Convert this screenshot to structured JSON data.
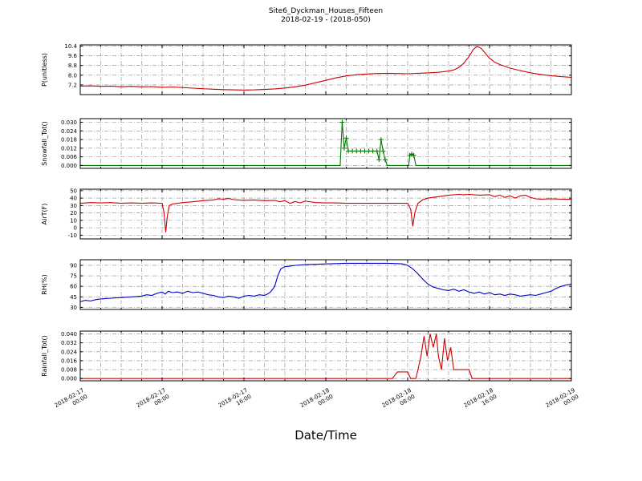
{
  "title": {
    "line1": "Site6_Dyckman_Houses_Fifteen",
    "line2": "2018-02-19 - (2018-050)"
  },
  "xlabel": "Date/Time",
  "chart_data": {
    "type": "line",
    "x_unit": "hours since 2018-02-17 00:00",
    "xlim": [
      0,
      48
    ],
    "grid": true,
    "minor_grid_step_hours": 2,
    "xticks": {
      "values": [
        0,
        8,
        16,
        24,
        32,
        40,
        48
      ],
      "labels": [
        [
          "2018-02-17",
          "00:00"
        ],
        [
          "2018-02-17",
          "08:00"
        ],
        [
          "2018-02-17",
          "16:00"
        ],
        [
          "2018-02-18",
          "00:00"
        ],
        [
          "2018-02-18",
          "08:00"
        ],
        [
          "2018-02-18",
          "16:00"
        ],
        [
          "2018-02-19",
          "00:00"
        ]
      ]
    },
    "panels": [
      {
        "name": "P",
        "ylabel": "P(unitless)",
        "color": "#cc0000",
        "ylim": [
          6.4,
          10.5
        ],
        "ytick_values": [
          7.2,
          8.0,
          8.8,
          9.6,
          10.4
        ],
        "ytick_labels": [
          "7.2",
          "8.0",
          "8.8",
          "9.6",
          "10.4"
        ],
        "marker": null,
        "points": [
          [
            0,
            7.1
          ],
          [
            1,
            7.12
          ],
          [
            2,
            7.08
          ],
          [
            3,
            7.1
          ],
          [
            4,
            7.05
          ],
          [
            5,
            7.08
          ],
          [
            6,
            7.04
          ],
          [
            7,
            7.06
          ],
          [
            8,
            7.0
          ],
          [
            9,
            7.03
          ],
          [
            10,
            6.98
          ],
          [
            11,
            6.93
          ],
          [
            12,
            6.88
          ],
          [
            13,
            6.84
          ],
          [
            14,
            6.81
          ],
          [
            15,
            6.79
          ],
          [
            16,
            6.78
          ],
          [
            17,
            6.79
          ],
          [
            18,
            6.82
          ],
          [
            19,
            6.87
          ],
          [
            20,
            6.94
          ],
          [
            21,
            7.04
          ],
          [
            22,
            7.18
          ],
          [
            23,
            7.38
          ],
          [
            24,
            7.58
          ],
          [
            25,
            7.78
          ],
          [
            26,
            7.94
          ],
          [
            27,
            8.04
          ],
          [
            28,
            8.1
          ],
          [
            29,
            8.14
          ],
          [
            30,
            8.16
          ],
          [
            31,
            8.14
          ],
          [
            32,
            8.12
          ],
          [
            33,
            8.16
          ],
          [
            34,
            8.19
          ],
          [
            35,
            8.24
          ],
          [
            36,
            8.34
          ],
          [
            36.5,
            8.44
          ],
          [
            37,
            8.64
          ],
          [
            37.5,
            9.0
          ],
          [
            38,
            9.55
          ],
          [
            38.4,
            10.1
          ],
          [
            38.8,
            10.38
          ],
          [
            39.2,
            10.2
          ],
          [
            39.6,
            9.8
          ],
          [
            40,
            9.4
          ],
          [
            40.5,
            9.08
          ],
          [
            41,
            8.88
          ],
          [
            42,
            8.58
          ],
          [
            43,
            8.38
          ],
          [
            44,
            8.2
          ],
          [
            45,
            8.06
          ],
          [
            46,
            7.96
          ],
          [
            47,
            7.88
          ],
          [
            48,
            7.82
          ]
        ]
      },
      {
        "name": "Snowfall",
        "ylabel": "Snowfall_Tot()",
        "color": "#007700",
        "ylim": [
          -0.002,
          0.0325
        ],
        "ytick_values": [
          0.0,
          0.006,
          0.012,
          0.018,
          0.024,
          0.03
        ],
        "ytick_labels": [
          "0.000",
          "0.006",
          "0.012",
          "0.018",
          "0.024",
          "0.030"
        ],
        "marker": "plus",
        "points": [
          [
            0,
            0
          ],
          [
            25.4,
            0
          ],
          [
            25.6,
            0.03
          ],
          [
            25.8,
            0.012
          ],
          [
            26,
            0.019
          ],
          [
            26.2,
            0.01
          ],
          [
            26.6,
            0.01
          ],
          [
            27,
            0.01
          ],
          [
            27.4,
            0.01
          ],
          [
            27.8,
            0.01
          ],
          [
            28.2,
            0.01
          ],
          [
            28.6,
            0.01
          ],
          [
            29,
            0.01
          ],
          [
            29.2,
            0.004
          ],
          [
            29.4,
            0.018
          ],
          [
            29.6,
            0.01
          ],
          [
            29.8,
            0.004
          ],
          [
            30,
            0
          ],
          [
            32.1,
            0
          ],
          [
            32.2,
            0.007
          ],
          [
            32.4,
            0.008
          ],
          [
            32.6,
            0.007
          ],
          [
            32.8,
            0
          ],
          [
            48,
            0
          ]
        ]
      },
      {
        "name": "AirT",
        "ylabel": "AirT(F)",
        "color": "#cc0000",
        "ylim": [
          -15,
          52
        ],
        "ytick_values": [
          -10,
          0,
          10,
          20,
          30,
          40,
          50
        ],
        "ytick_labels": [
          "-10",
          "0",
          "10",
          "20",
          "30",
          "40",
          "50"
        ],
        "marker": null,
        "points": [
          [
            0,
            33
          ],
          [
            1,
            34
          ],
          [
            2,
            33.5
          ],
          [
            3,
            34
          ],
          [
            4,
            33
          ],
          [
            5,
            33.5
          ],
          [
            6,
            33
          ],
          [
            7,
            33.5
          ],
          [
            8,
            33
          ],
          [
            8.2,
            20
          ],
          [
            8.35,
            -6
          ],
          [
            8.5,
            15
          ],
          [
            8.7,
            30
          ],
          [
            9,
            32
          ],
          [
            10,
            34
          ],
          [
            11,
            35
          ],
          [
            12,
            36.5
          ],
          [
            13,
            37.5
          ],
          [
            13.5,
            39
          ],
          [
            14,
            38.5
          ],
          [
            14.5,
            39.5
          ],
          [
            15,
            38
          ],
          [
            16,
            37
          ],
          [
            17,
            37.5
          ],
          [
            18,
            36.5
          ],
          [
            19,
            37
          ],
          [
            19.5,
            35
          ],
          [
            20,
            36.5
          ],
          [
            20.5,
            33
          ],
          [
            21,
            35.5
          ],
          [
            21.5,
            33.5
          ],
          [
            22,
            36
          ],
          [
            23,
            34
          ],
          [
            24,
            33.5
          ],
          [
            25,
            33.5
          ],
          [
            26,
            33
          ],
          [
            27,
            33
          ],
          [
            28,
            33
          ],
          [
            29,
            33
          ],
          [
            30,
            33
          ],
          [
            31,
            33
          ],
          [
            32,
            33
          ],
          [
            32.3,
            25
          ],
          [
            32.5,
            2
          ],
          [
            32.7,
            20
          ],
          [
            33,
            33
          ],
          [
            33.5,
            38
          ],
          [
            34,
            40
          ],
          [
            35,
            42
          ],
          [
            36,
            44
          ],
          [
            37,
            45
          ],
          [
            37.5,
            44.5
          ],
          [
            38,
            45
          ],
          [
            39,
            44
          ],
          [
            40,
            44.5
          ],
          [
            40.5,
            42
          ],
          [
            41,
            44
          ],
          [
            41.5,
            41
          ],
          [
            42,
            43
          ],
          [
            42.5,
            40
          ],
          [
            43,
            43
          ],
          [
            43.5,
            44
          ],
          [
            44,
            41
          ],
          [
            44.5,
            39
          ],
          [
            45,
            38.5
          ],
          [
            46,
            39
          ],
          [
            47,
            38.5
          ],
          [
            48,
            38.5
          ]
        ]
      },
      {
        "name": "RH",
        "ylabel": "RH(%)",
        "color": "#0000cc",
        "ylim": [
          27,
          98
        ],
        "ytick_values": [
          30,
          45,
          60,
          75,
          90
        ],
        "ytick_labels": [
          "30",
          "45",
          "60",
          "75",
          "90"
        ],
        "marker": null,
        "points": [
          [
            0,
            38
          ],
          [
            0.5,
            40
          ],
          [
            1,
            39
          ],
          [
            1.5,
            41
          ],
          [
            2,
            42
          ],
          [
            3,
            43
          ],
          [
            4,
            44
          ],
          [
            5,
            45
          ],
          [
            6,
            46
          ],
          [
            6.5,
            48
          ],
          [
            7,
            47
          ],
          [
            7.5,
            50
          ],
          [
            8,
            52
          ],
          [
            8.3,
            49
          ],
          [
            8.6,
            53
          ],
          [
            9,
            51
          ],
          [
            9.5,
            52
          ],
          [
            10,
            50
          ],
          [
            10.5,
            53
          ],
          [
            11,
            51
          ],
          [
            11.5,
            52
          ],
          [
            12,
            50
          ],
          [
            12.5,
            48
          ],
          [
            13,
            47
          ],
          [
            13.5,
            45
          ],
          [
            14,
            44
          ],
          [
            14.5,
            46
          ],
          [
            15,
            45
          ],
          [
            15.5,
            43
          ],
          [
            16,
            46
          ],
          [
            16.5,
            47
          ],
          [
            17,
            46
          ],
          [
            17.5,
            48
          ],
          [
            18,
            47
          ],
          [
            18.3,
            49
          ],
          [
            18.6,
            52
          ],
          [
            19,
            60
          ],
          [
            19.3,
            75
          ],
          [
            19.6,
            85
          ],
          [
            20,
            88
          ],
          [
            20.5,
            89
          ],
          [
            21,
            90
          ],
          [
            22,
            91
          ],
          [
            23,
            91.5
          ],
          [
            24,
            92
          ],
          [
            25,
            92.5
          ],
          [
            26,
            93
          ],
          [
            27,
            93
          ],
          [
            28,
            93
          ],
          [
            29,
            93
          ],
          [
            30,
            93
          ],
          [
            31,
            92.5
          ],
          [
            31.5,
            92
          ],
          [
            32,
            90
          ],
          [
            32.5,
            85
          ],
          [
            33,
            78
          ],
          [
            33.5,
            70
          ],
          [
            34,
            63
          ],
          [
            34.5,
            59
          ],
          [
            35,
            57
          ],
          [
            35.5,
            55
          ],
          [
            36,
            54
          ],
          [
            36.5,
            56
          ],
          [
            37,
            53
          ],
          [
            37.5,
            55
          ],
          [
            38,
            52
          ],
          [
            38.5,
            50
          ],
          [
            39,
            52
          ],
          [
            39.5,
            49
          ],
          [
            40,
            51
          ],
          [
            40.5,
            48
          ],
          [
            41,
            49
          ],
          [
            41.5,
            47
          ],
          [
            42,
            49
          ],
          [
            42.5,
            48
          ],
          [
            43,
            46
          ],
          [
            43.5,
            47
          ],
          [
            44,
            48
          ],
          [
            44.5,
            47
          ],
          [
            45,
            49
          ],
          [
            45.5,
            51
          ],
          [
            46,
            53
          ],
          [
            46.5,
            57
          ],
          [
            47,
            60
          ],
          [
            47.5,
            62
          ],
          [
            48,
            63
          ]
        ]
      },
      {
        "name": "Rainfall",
        "ylabel": "Rainfall_Tot()",
        "color": "#cc0000",
        "ylim": [
          -0.002,
          0.0425
        ],
        "ytick_values": [
          0.0,
          0.008,
          0.016,
          0.024,
          0.032,
          0.04
        ],
        "ytick_labels": [
          "0.000",
          "0.008",
          "0.016",
          "0.024",
          "0.032",
          "0.040"
        ],
        "marker": null,
        "points": [
          [
            0,
            0
          ],
          [
            30.5,
            0
          ],
          [
            31,
            0.006
          ],
          [
            31.5,
            0.006
          ],
          [
            32,
            0.006
          ],
          [
            32.3,
            0
          ],
          [
            32.8,
            0
          ],
          [
            33,
            0.008
          ],
          [
            33.3,
            0.02
          ],
          [
            33.6,
            0.038
          ],
          [
            33.9,
            0.02
          ],
          [
            34.2,
            0.04
          ],
          [
            34.5,
            0.028
          ],
          [
            34.8,
            0.04
          ],
          [
            35,
            0.02
          ],
          [
            35.3,
            0.008
          ],
          [
            35.6,
            0.036
          ],
          [
            35.9,
            0.016
          ],
          [
            36.2,
            0.028
          ],
          [
            36.5,
            0.008
          ],
          [
            37,
            0.008
          ],
          [
            37.5,
            0.008
          ],
          [
            38,
            0.008
          ],
          [
            38.3,
            0
          ],
          [
            48,
            0
          ]
        ]
      }
    ]
  }
}
